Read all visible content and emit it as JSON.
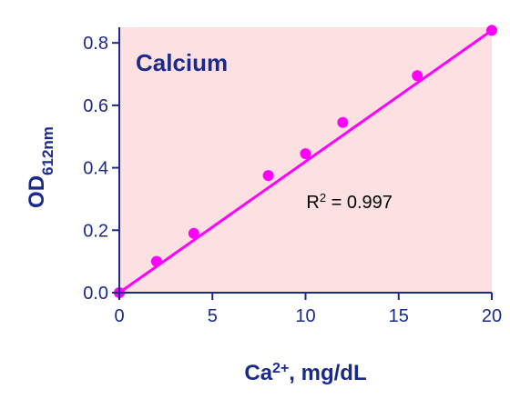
{
  "chart_data": {
    "type": "scatter",
    "title": "Calcium",
    "xlabel": {
      "base": "Ca",
      "sup": "2+",
      "rest": ", mg/dL"
    },
    "ylabel": {
      "base": "OD",
      "sub": "612nm"
    },
    "xlim": [
      0,
      20
    ],
    "ylim": [
      0,
      0.85
    ],
    "xticks": [
      0,
      5,
      10,
      15,
      20
    ],
    "xtick_labels": [
      "0",
      "5",
      "10",
      "15",
      "20"
    ],
    "yticks": [
      0,
      0.2,
      0.4,
      0.6,
      0.8
    ],
    "ytick_labels": [
      "0.0",
      "0.2",
      "0.4",
      "0.6",
      "0.8"
    ],
    "series": [
      {
        "x": [
          0,
          2,
          4,
          8,
          10,
          12,
          16,
          20
        ],
        "y": [
          0.0,
          0.1,
          0.19,
          0.375,
          0.445,
          0.545,
          0.695,
          0.84
        ]
      }
    ],
    "fit_line": {
      "x": [
        0,
        20
      ],
      "y": [
        0.0,
        0.84
      ]
    },
    "annotation": {
      "base": "R",
      "sup": "2",
      "rest": " = 0.997",
      "x": 12,
      "y": 0.27
    },
    "grid": false,
    "colors": {
      "plot_background": "#fde0e2",
      "series": "#ff00ff",
      "axis": "#1a2a8c",
      "text": "#1a2a8c",
      "annotation": "#000000"
    }
  }
}
